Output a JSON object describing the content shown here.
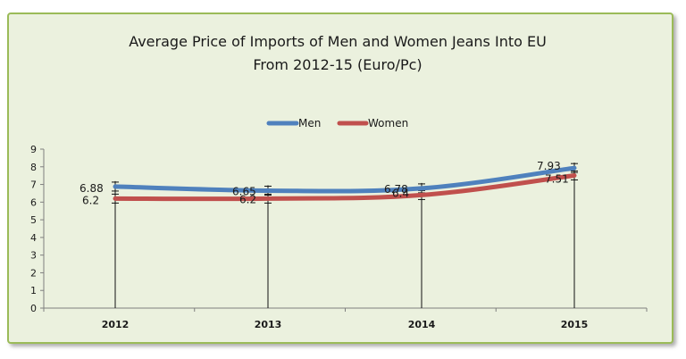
{
  "chart_data": {
    "type": "line",
    "title_line1": "Average Price of Imports of Men and Women Jeans Into EU",
    "title_line2": "From 2012-15 (Euro/Pc)",
    "categories": [
      "2012",
      "2013",
      "2014",
      "2015"
    ],
    "series": [
      {
        "name": "Men",
        "values": [
          6.88,
          6.65,
          6.78,
          7.93
        ],
        "labels": [
          "6.88",
          "6.65",
          "6.78",
          "7.93"
        ],
        "color": "#4f81bd"
      },
      {
        "name": "Women",
        "values": [
          6.2,
          6.2,
          6.4,
          7.51
        ],
        "labels": [
          "6.2",
          "6.2",
          "6.4",
          "7.51"
        ],
        "color": "#c0504d"
      }
    ],
    "ylim": [
      0,
      9
    ],
    "yticks": [
      "0",
      "1",
      "2",
      "3",
      "4",
      "5",
      "6",
      "7",
      "8",
      "9"
    ],
    "grid": false,
    "legend_position": "top",
    "background_color": "#ebf1de",
    "border_color": "#9bbb59"
  }
}
